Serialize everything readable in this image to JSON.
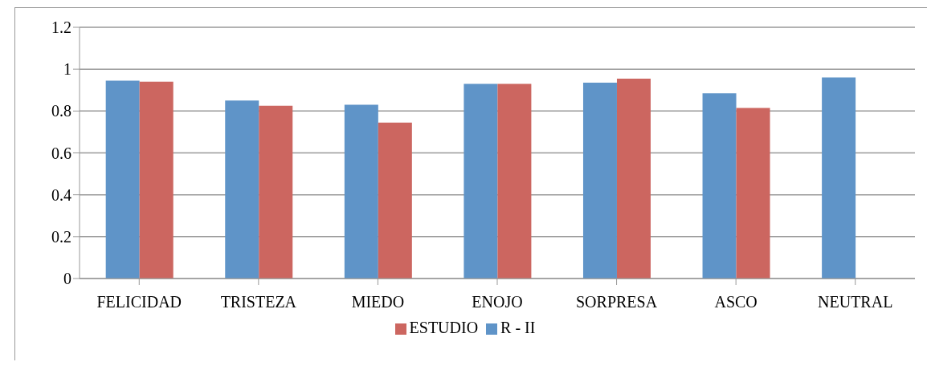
{
  "chart_data": {
    "type": "bar",
    "categories": [
      "FELICIDAD",
      "TRISTEZA",
      "MIEDO",
      "ENOJO",
      "SORPRESA",
      "ASCO",
      "NEUTRAL"
    ],
    "series": [
      {
        "name": "R - II",
        "color": "#5f94c8",
        "values": [
          0.945,
          0.85,
          0.83,
          0.93,
          0.935,
          0.885,
          0.96
        ]
      },
      {
        "name": "ESTUDIO",
        "color": "#cc6660",
        "values": [
          0.94,
          0.825,
          0.745,
          0.93,
          0.955,
          0.815,
          null
        ]
      }
    ],
    "ylim": [
      0,
      1.2
    ],
    "yticks": [
      0,
      0.2,
      0.4,
      0.6,
      0.8,
      1,
      1.2
    ],
    "grid": "y",
    "legend": "bottom"
  }
}
